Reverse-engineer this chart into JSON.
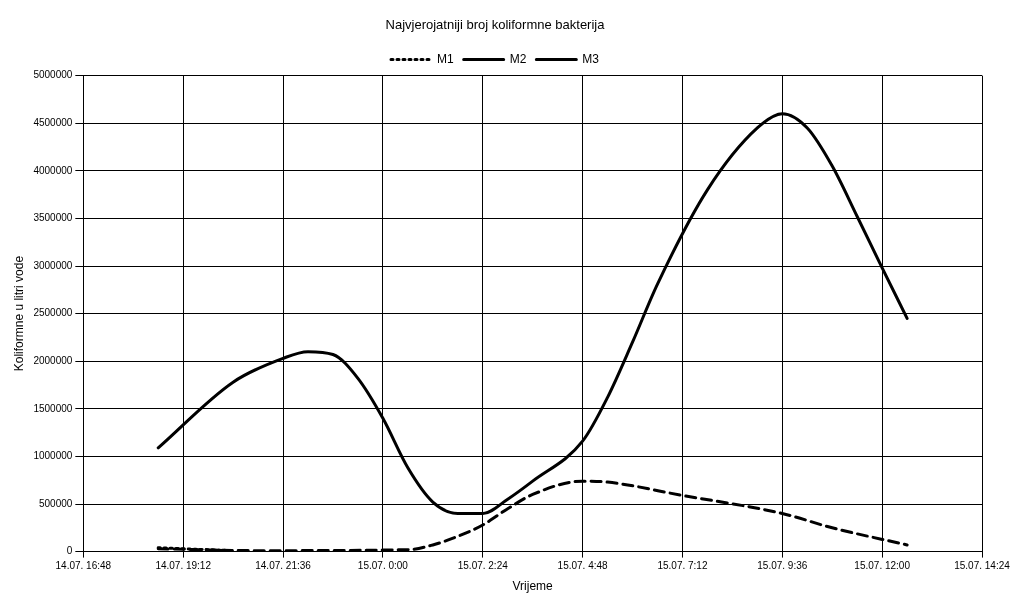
{
  "chart_data": {
    "type": "line",
    "title": "Najvjerojatniji broj koliformne bakterija",
    "xlabel": "Vrijeme",
    "ylabel": "Koliformne u litri vode",
    "categories": [
      "14.07. 16:48",
      null,
      null,
      null,
      "14.07. 19:12",
      null,
      null,
      null,
      "14.07. 21:36",
      null,
      null,
      null,
      "15.07. 0:00",
      null,
      null,
      null,
      "15.07. 2:24",
      null,
      null,
      null,
      "15.07. 4:48",
      null,
      null,
      null,
      "15.07. 7:12",
      null,
      null,
      null,
      "15.07. 9:36",
      null,
      null,
      null,
      "15.07. 12:00",
      null,
      null,
      null,
      "15.07. 14:24"
    ],
    "ylim": [
      0,
      5000000
    ],
    "yticks": [
      0,
      500000,
      1000000,
      1500000,
      2000000,
      2500000,
      3000000,
      3500000,
      4000000,
      4500000,
      5000000
    ],
    "grid": true,
    "legend": "top",
    "marker": "none",
    "series": [
      {
        "name": "M1",
        "color": "#000000",
        "line_style": "dotted",
        "values": [
          null,
          null,
          null,
          40000,
          30000,
          null,
          10000,
          null,
          null,
          null,
          null,
          null,
          null,
          null,
          null,
          null,
          null,
          null,
          null,
          null,
          null,
          null,
          null,
          null,
          null,
          null,
          null,
          null,
          null,
          null,
          null,
          null,
          null,
          null,
          null,
          null,
          null
        ]
      },
      {
        "name": "M2",
        "color": "#000000",
        "line_style": "solid",
        "values": [
          null,
          null,
          null,
          1090000,
          null,
          null,
          1780000,
          null,
          2030000,
          2100000,
          2070000,
          1820000,
          1400000,
          880000,
          520000,
          400000,
          400000,
          550000,
          740000,
          null,
          1160000,
          1620000,
          2200000,
          2810000,
          null,
          3800000,
          null,
          4450000,
          4600000,
          4450000,
          4050000,
          3520000,
          2980000,
          2450000,
          null,
          null,
          null
        ]
      },
      {
        "name": "M3",
        "color": "#000000",
        "line_style": "dashed",
        "values": [
          null,
          null,
          null,
          30000,
          null,
          null,
          null,
          10000,
          null,
          null,
          null,
          null,
          null,
          20000,
          70000,
          160000,
          280000,
          450000,
          600000,
          null,
          740000,
          730000,
          null,
          null,
          590000,
          null,
          null,
          null,
          400000,
          null,
          250000,
          null,
          null,
          70000,
          null,
          null,
          null
        ]
      }
    ]
  }
}
